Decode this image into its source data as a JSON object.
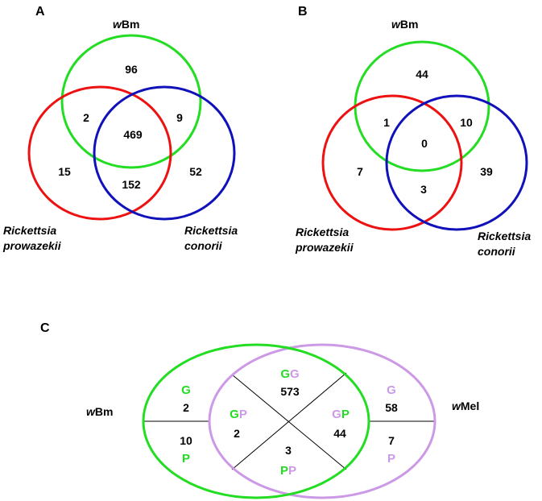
{
  "colors": {
    "green": "#22dd22",
    "red": "#ee1111",
    "blue": "#1111bb",
    "lilac": "#cc99e6",
    "black": "#000000"
  },
  "panel_a": {
    "label": "A",
    "sets": {
      "wbm_prefix": "w",
      "wbm_rest": "Bm",
      "rp_line1": "Rickettsia",
      "rp_line2": "prowazekii",
      "rc_line1": "Rickettsia",
      "rc_line2": "conorii"
    },
    "counts": {
      "wbm_only": "96",
      "wbm_rp": "2",
      "wbm_rc": "9",
      "all_three": "469",
      "rp_only": "15",
      "rp_rc": "152",
      "rc_only": "52"
    }
  },
  "panel_b": {
    "label": "B",
    "sets": {
      "wbm_prefix": "w",
      "wbm_rest": "Bm",
      "rp_line1": "Rickettsia",
      "rp_line2": "prowazekii",
      "rc_line1": "Rickettsia",
      "rc_line2": "conorii"
    },
    "counts": {
      "wbm_only": "44",
      "wbm_rp": "1",
      "wbm_rc": "10",
      "all_three": "0",
      "rp_only": "7",
      "rp_rc": "3",
      "rc_only": "39"
    }
  },
  "panel_c": {
    "label": "C",
    "sets": {
      "wbm_prefix": "w",
      "wbm_rest": "Bm",
      "wmel_prefix": "w",
      "wmel_rest": "Mel"
    },
    "letters": {
      "G": "G",
      "P": "P"
    },
    "counts": {
      "wbm_G": "2",
      "wbm_P": "10",
      "GG": "573",
      "GP_left": "2",
      "GP_right": "44",
      "PP": "3",
      "wmel_G": "58",
      "wmel_P": "7"
    }
  }
}
